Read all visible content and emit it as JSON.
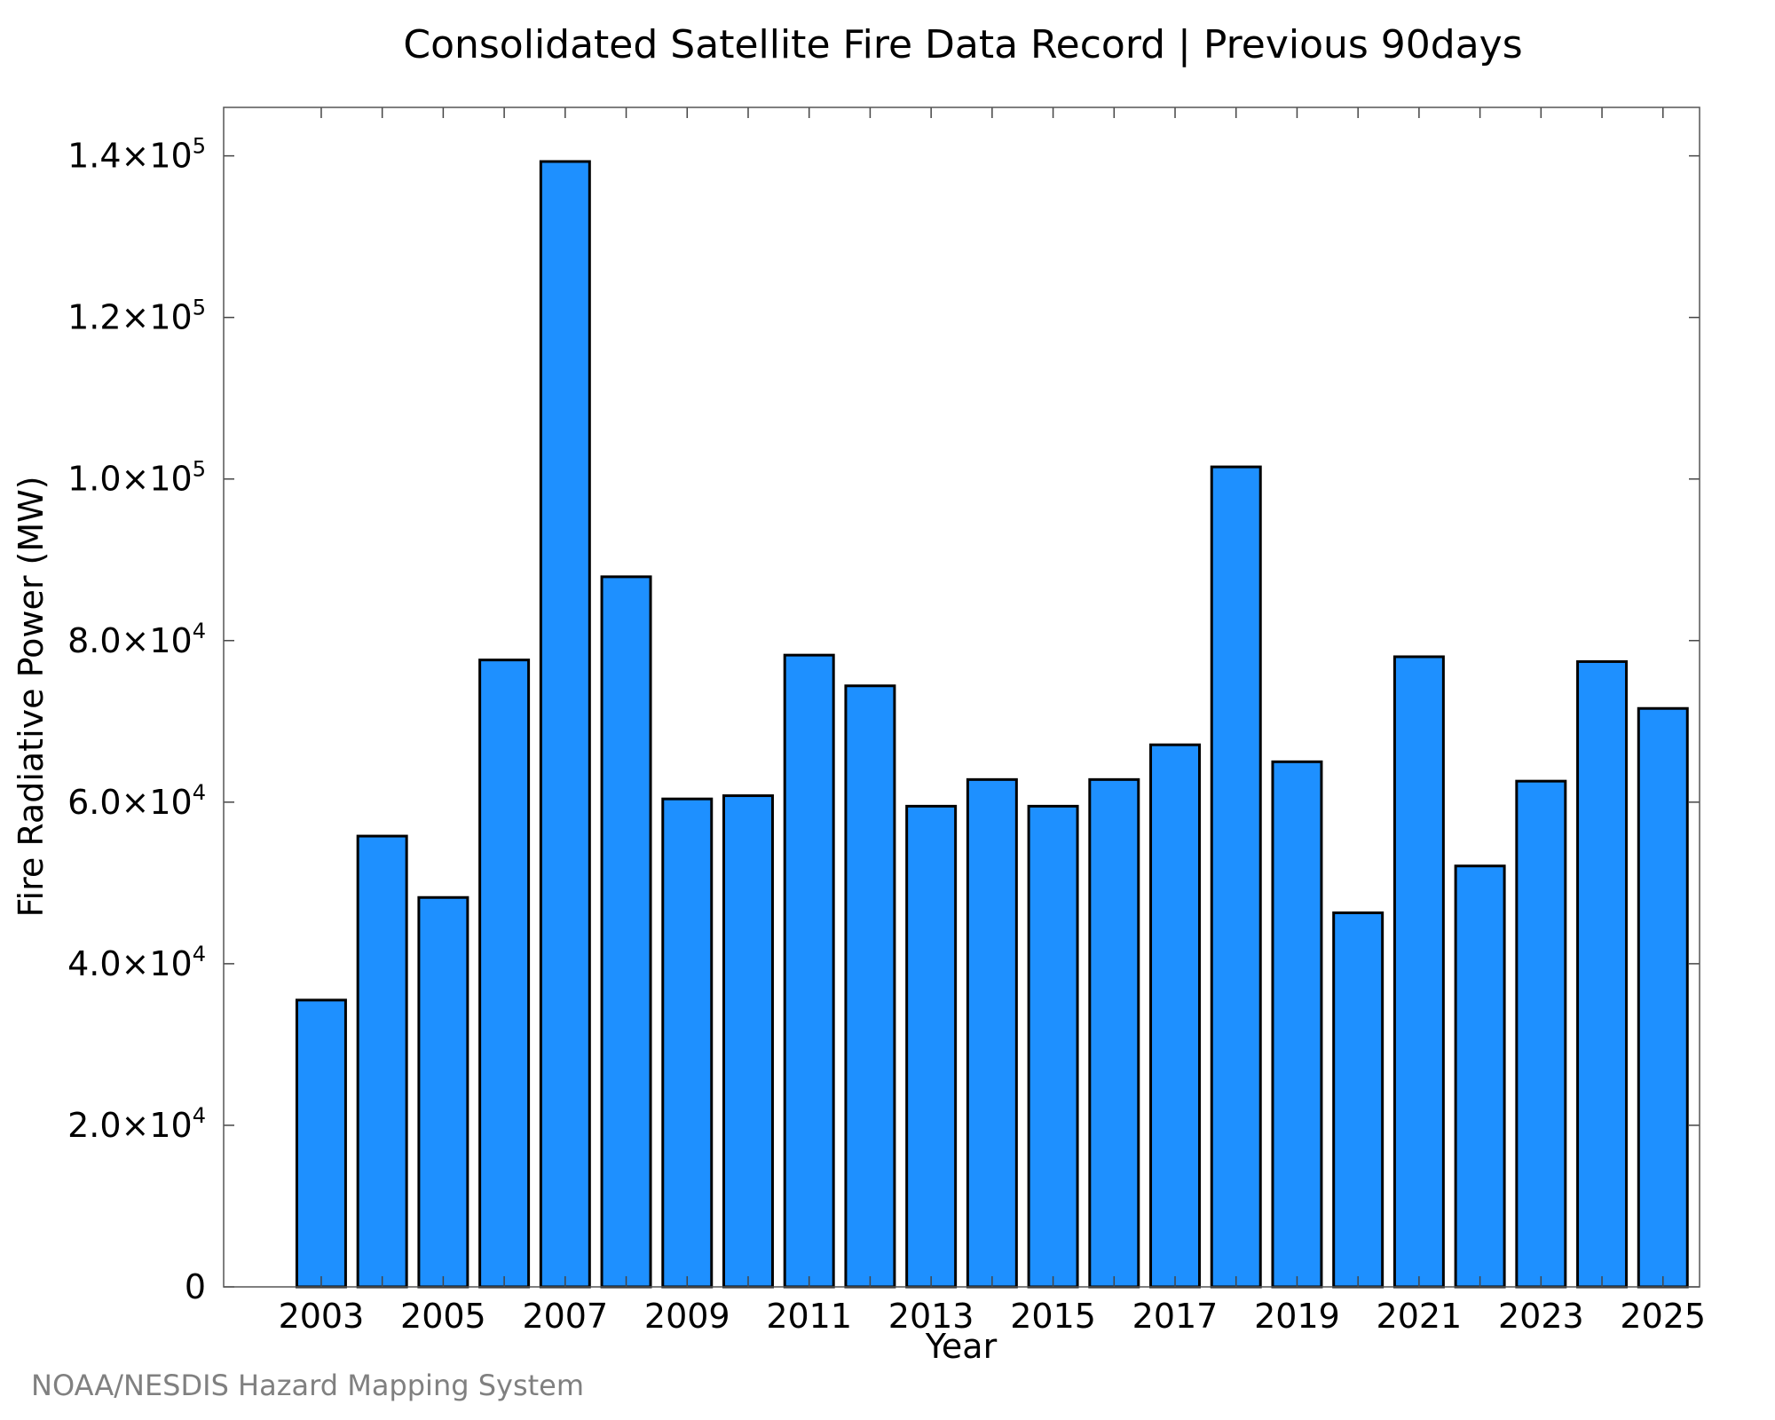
{
  "chart_data": {
    "type": "bar",
    "title": "Consolidated Satellite Fire Data Record | Previous 90days",
    "xlabel": "Year",
    "ylabel": "Fire Radiative Power (MW)",
    "categories": [
      "2003",
      "2004",
      "2005",
      "2006",
      "2007",
      "2008",
      "2009",
      "2010",
      "2011",
      "2012",
      "2013",
      "2014",
      "2015",
      "2016",
      "2017",
      "2018",
      "2019",
      "2020",
      "2021",
      "2022",
      "2023",
      "2024",
      "2025"
    ],
    "values": [
      35500,
      55800,
      48200,
      77600,
      139300,
      87900,
      60400,
      60800,
      78200,
      74400,
      59500,
      62800,
      59500,
      62800,
      67100,
      101500,
      65000,
      46300,
      78000,
      52100,
      62600,
      77400,
      71600
    ],
    "x_tick_labels": [
      "2003",
      "2005",
      "2007",
      "2009",
      "2011",
      "2013",
      "2015",
      "2017",
      "2019",
      "2021",
      "2023",
      "2025"
    ],
    "y_ticks": [
      {
        "value": 0,
        "mantissa": "0",
        "exponent": ""
      },
      {
        "value": 20000,
        "mantissa": "2.0×10",
        "exponent": "4"
      },
      {
        "value": 40000,
        "mantissa": "4.0×10",
        "exponent": "4"
      },
      {
        "value": 60000,
        "mantissa": "6.0×10",
        "exponent": "4"
      },
      {
        "value": 80000,
        "mantissa": "8.0×10",
        "exponent": "4"
      },
      {
        "value": 100000,
        "mantissa": "1.0×10",
        "exponent": "5"
      },
      {
        "value": 120000,
        "mantissa": "1.2×10",
        "exponent": "5"
      },
      {
        "value": 140000,
        "mantissa": "1.4×10",
        "exponent": "5"
      }
    ],
    "ylim": [
      0,
      146000
    ],
    "xlim": [
      2001.4,
      2025.6
    ],
    "bar_color": "#1e90ff",
    "grid": false,
    "legend": "none"
  },
  "credit": "NOAA/NESDIS Hazard Mapping System"
}
